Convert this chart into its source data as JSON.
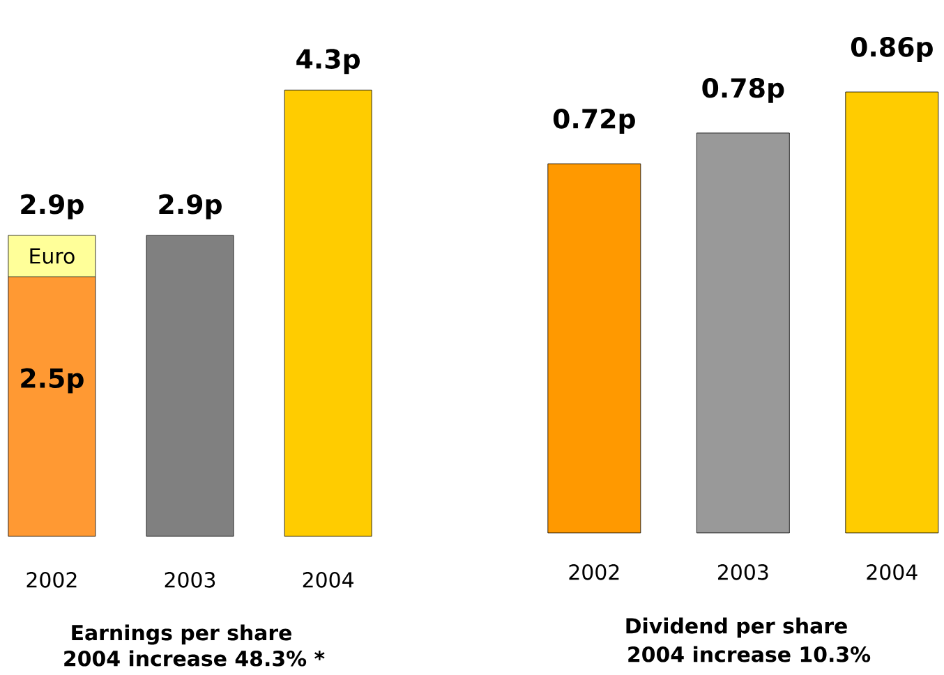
{
  "chart_data": [
    {
      "type": "bar",
      "title": "Earnings per share",
      "subtitle": "2004 increase 48.3% *",
      "categories": [
        "2002",
        "2003",
        "2004"
      ],
      "stacked": true,
      "tick_labels": "x",
      "series": [
        {
          "colors": [
            "#ff9933",
            "#808080",
            "#ffcc00"
          ],
          "values": [
            2.5,
            2.9,
            4.3
          ],
          "value_labels": [
            "2.5p",
            null,
            null
          ]
        },
        {
          "name": "Euro",
          "color": "#ffff99",
          "values": [
            0.4,
            null,
            null
          ]
        }
      ],
      "totals": [
        "2.9p",
        "2.9p",
        "4.3p"
      ]
    },
    {
      "type": "bar",
      "title": "Dividend per share",
      "subtitle": "2004 increase 10.3%",
      "categories": [
        "2002",
        "2003",
        "2004"
      ],
      "tick_labels": "x",
      "series": [
        {
          "colors": [
            "#ff9900",
            "#999999",
            "#ffcc00"
          ],
          "values": [
            0.72,
            0.78,
            0.86
          ],
          "value_labels": [
            "0.72p",
            "0.78p",
            "0.86p"
          ]
        }
      ]
    }
  ]
}
